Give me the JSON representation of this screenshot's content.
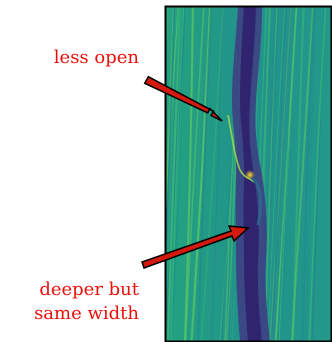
{
  "annotations": {
    "upper": "less open",
    "lower_line1": "deeper but",
    "lower_line2": "same width"
  },
  "colors": {
    "label_text": "#e8100a",
    "arrow_fill": "#d41a0e",
    "arrow_outline": "#000000",
    "field_base": "#21918c",
    "trough": "#3b2a7c",
    "streak_light": "#7fd34e",
    "frame": "#000000"
  },
  "colormap": "viridis"
}
